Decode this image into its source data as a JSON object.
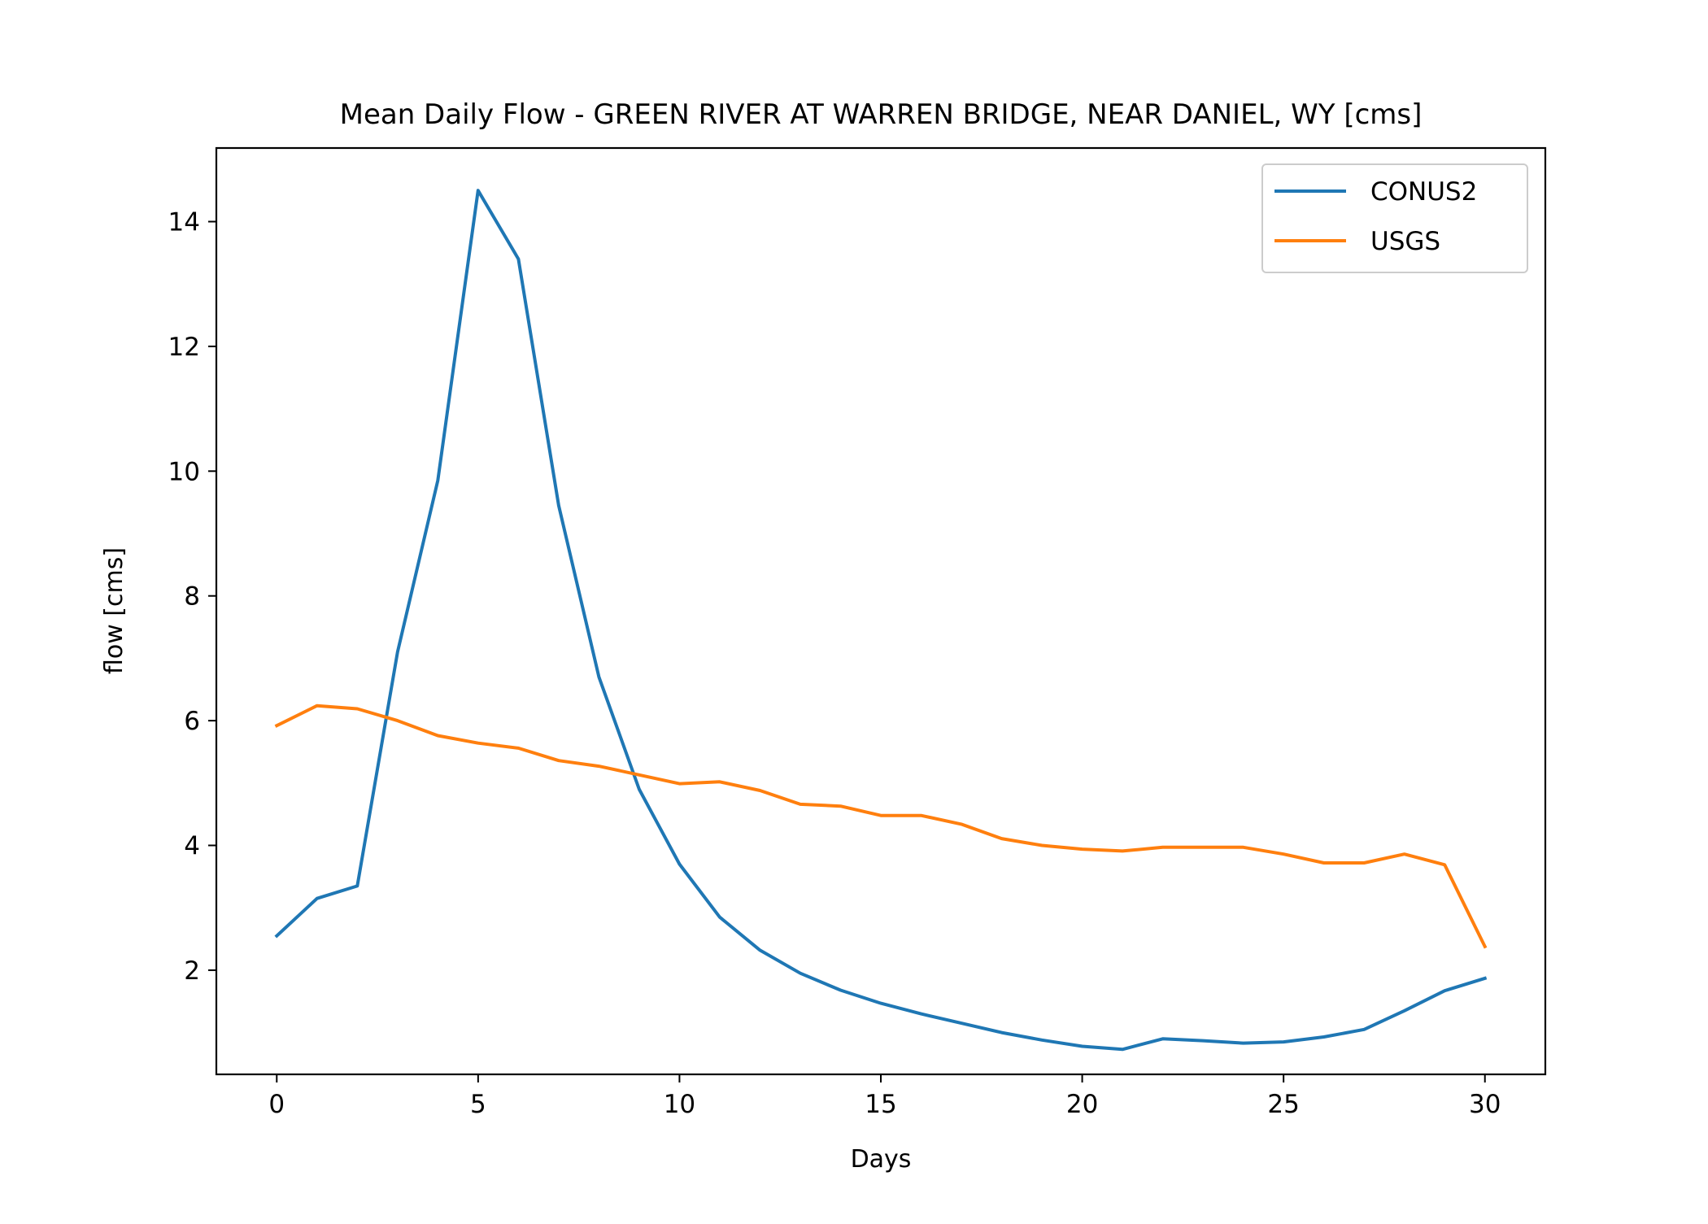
{
  "chart_data": {
    "type": "line",
    "title": "Mean Daily Flow - GREEN RIVER AT WARREN BRIDGE, NEAR DANIEL, WY [cms]",
    "xlabel": "Days",
    "ylabel": "flow [cms]",
    "xlim": [
      -1.5,
      31.5
    ],
    "ylim": [
      0.33,
      15.18
    ],
    "xticks": [
      0,
      5,
      10,
      15,
      20,
      25,
      30
    ],
    "yticks": [
      2,
      4,
      6,
      8,
      10,
      12,
      14
    ],
    "grid": false,
    "legend_position": "top-right",
    "x": [
      0,
      1,
      2,
      3,
      4,
      5,
      6,
      7,
      8,
      9,
      10,
      11,
      12,
      13,
      14,
      15,
      16,
      17,
      18,
      19,
      20,
      21,
      22,
      23,
      24,
      25,
      26,
      27,
      28,
      29,
      30
    ],
    "series": [
      {
        "name": "CONUS2",
        "color": "#1f77b4",
        "values": [
          2.55,
          3.15,
          3.35,
          7.1,
          9.85,
          14.5,
          13.4,
          9.45,
          6.7,
          4.9,
          3.7,
          2.85,
          2.32,
          1.95,
          1.68,
          1.47,
          1.3,
          1.15,
          1.0,
          0.88,
          0.78,
          0.73,
          0.9,
          0.87,
          0.83,
          0.85,
          0.93,
          1.05,
          1.35,
          1.67,
          1.87
        ]
      },
      {
        "name": "USGS",
        "color": "#ff7f0e",
        "values": [
          5.92,
          6.24,
          6.19,
          6.0,
          5.76,
          5.64,
          5.56,
          5.36,
          5.27,
          5.13,
          4.99,
          5.02,
          4.88,
          4.66,
          4.63,
          4.48,
          4.48,
          4.34,
          4.11,
          4.0,
          3.94,
          3.91,
          3.97,
          3.97,
          3.97,
          3.86,
          3.72,
          3.72,
          3.86,
          3.69,
          2.38
        ]
      }
    ]
  }
}
